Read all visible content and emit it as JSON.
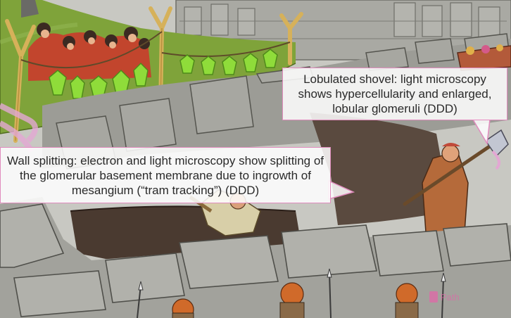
{
  "callouts": {
    "lobulated_shovel": "Lobulated shovel: light microscopy shows hypercellularity and enlarged, lobular glomeruli (DDD)",
    "wall_splitting": "Wall splitting: electron and light microscopy show splitting of the glomerular basement membrane due to ingrowth of mesangium (“tram tracking”) (DDD)"
  },
  "watermark": {
    "text": "Path"
  },
  "colors": {
    "callout_border": "#e08bbd",
    "callout_fill": "#ffffff",
    "watermark": "#e067a8",
    "grass": "#7fa33a",
    "stone": "#9c9c96",
    "trench": "#4a3a30",
    "lantern_green": "#8fdc3a"
  },
  "icons": [
    "watermark-logo-icon"
  ]
}
